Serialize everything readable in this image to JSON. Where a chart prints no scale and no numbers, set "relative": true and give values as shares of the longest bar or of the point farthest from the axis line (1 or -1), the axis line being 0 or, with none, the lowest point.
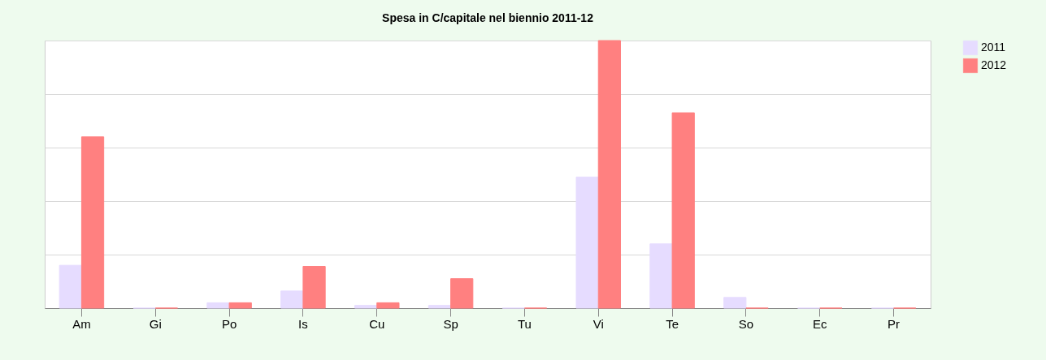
{
  "chart_data": {
    "type": "bar",
    "title": "Spesa in C/capitale nel biennio 2011-12",
    "relative": true,
    "categories": [
      "Am",
      "Gi",
      "Po",
      "Is",
      "Cu",
      "Sp",
      "Tu",
      "Vi",
      "Te",
      "So",
      "Ec",
      "Pr"
    ],
    "series": [
      {
        "name": "2011",
        "color": "#e6dcff",
        "values": [
          0.16,
          0,
          0.02,
          0.064,
          0.01,
          0.01,
          0,
          0.49,
          0.24,
          0.04,
          0,
          0
        ]
      },
      {
        "name": "2012",
        "color": "#ff8080",
        "values": [
          0.64,
          0,
          0.02,
          0.156,
          0.02,
          0.11,
          0,
          1,
          0.73,
          0,
          0,
          0
        ]
      }
    ],
    "grid": true,
    "legend": "right"
  }
}
